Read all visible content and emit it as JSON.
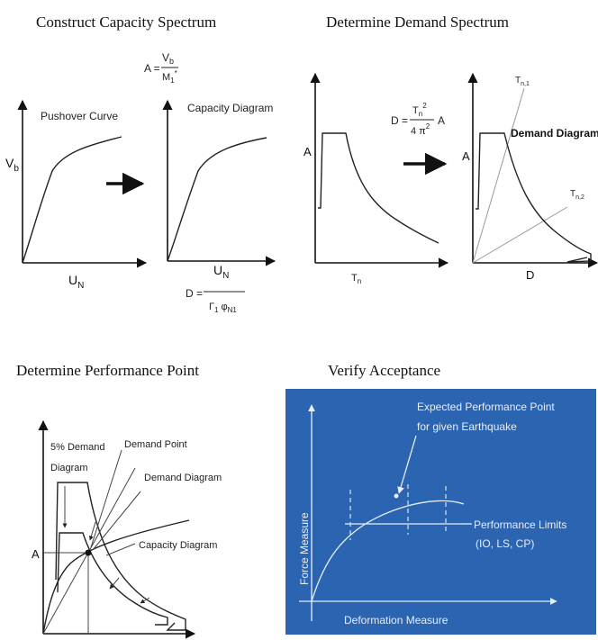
{
  "panels": {
    "capacity": {
      "title": "Construct Capacity Spectrum",
      "pushover_label": "Pushover Curve",
      "capacity_label": "Capacity Diagram",
      "vb_axis": "V",
      "vb_sub": "b",
      "un_axis": "U",
      "un_sub": "N",
      "formula_a": {
        "lhs": "A =",
        "num": "V",
        "num_sub": "b",
        "den": "M",
        "den_sub": "1",
        "den_sup": "*"
      },
      "formula_d": {
        "lhs": "D =",
        "num": "U",
        "num_sub": "N",
        "den": "Γ",
        "den_sub": "1",
        "den2": "φ",
        "den2_sub": "N1"
      }
    },
    "demand": {
      "title": "Determine Demand Spectrum",
      "a_axis": "A",
      "tn_axis": "T",
      "tn_sub": "n",
      "d_axis": "D",
      "formula": {
        "lhs": "D =",
        "num": "T",
        "num_sub": "n",
        "num_sup": "2",
        "den": "4 π",
        "den_sup": "2",
        "rhs": "A"
      },
      "demand_label": "Demand Diagram",
      "tn1": "T",
      "tn1_sub": "n,1",
      "tn2": "T",
      "tn2_sub": "n,2"
    },
    "performance": {
      "title": "Determine Performance Point",
      "label_5pct_1": "5% Demand",
      "label_5pct_2": "Diagram",
      "demand_point": "Demand Point",
      "demand_diagram": "Demand Diagram",
      "capacity_diagram": "Capacity Diagram",
      "a_axis": "A"
    },
    "acceptance": {
      "title": "Verify Acceptance",
      "expected_1": "Expected Performance Point",
      "expected_2": "for given Earthquake",
      "limits_1": "Performance Limits",
      "limits_2": "(IO, LS, CP)",
      "y_axis": "Force Measure",
      "x_axis": "Deformation Measure",
      "bg_color": "#2b64b0"
    }
  }
}
